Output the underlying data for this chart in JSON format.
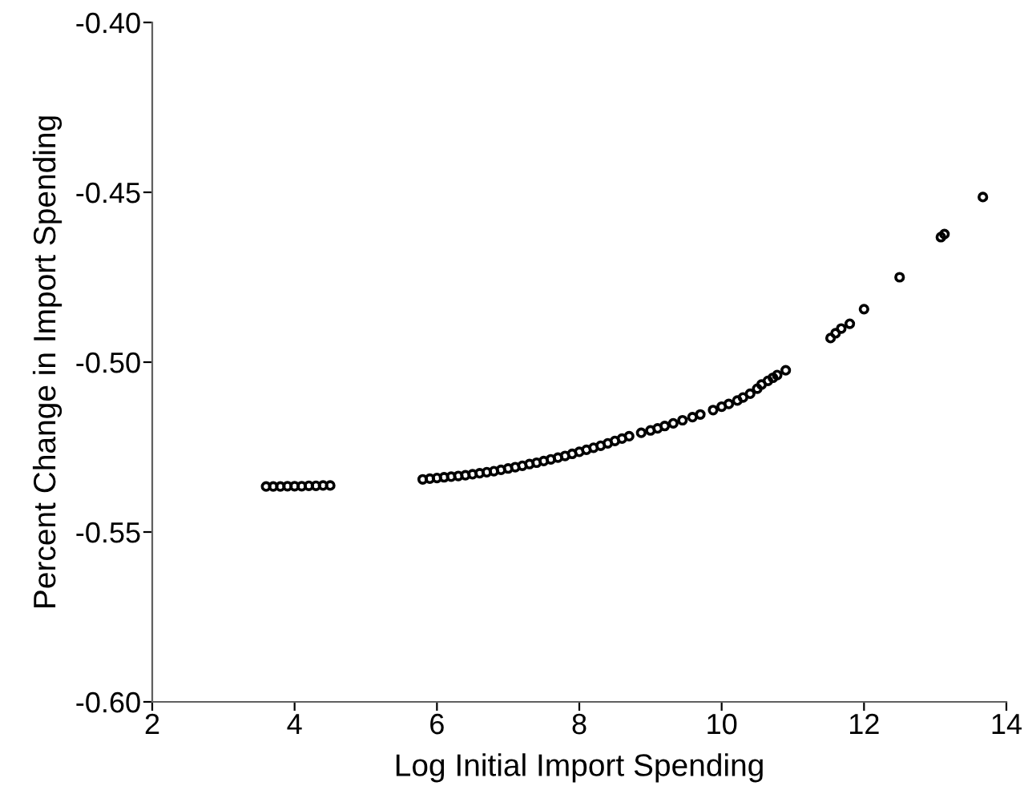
{
  "chart_data": {
    "type": "scatter",
    "xlabel": "Log Initial Import Spending",
    "ylabel": "Percent Change in Import Spending",
    "xlim": [
      2,
      14
    ],
    "ylim": [
      -0.6,
      -0.4
    ],
    "xticks": [
      2,
      4,
      6,
      8,
      10,
      12,
      14
    ],
    "yticks": [
      {
        "value": -0.6,
        "label": "-0.60"
      },
      {
        "value": -0.55,
        "label": "-0.55"
      },
      {
        "value": -0.5,
        "label": "-0.50"
      },
      {
        "value": -0.45,
        "label": "-0.45"
      },
      {
        "value": -0.4,
        "label": "-0.40"
      }
    ],
    "grid": false,
    "marker": "circle",
    "series": [
      {
        "color": "#000000",
        "x": [
          3.6,
          3.7,
          3.8,
          3.9,
          4.0,
          4.1,
          4.2,
          4.3,
          4.4,
          4.5,
          5.8,
          5.9,
          6.0,
          6.1,
          6.2,
          6.3,
          6.4,
          6.5,
          6.6,
          6.7,
          6.8,
          6.9,
          7.0,
          7.1,
          7.2,
          7.3,
          7.4,
          7.5,
          7.6,
          7.7,
          7.8,
          7.9,
          8.0,
          8.1,
          8.2,
          8.3,
          8.4,
          8.5,
          8.6,
          8.7,
          8.87,
          9.0,
          9.1,
          9.2,
          9.32,
          9.45,
          9.59,
          9.7,
          9.88,
          10.0,
          10.1,
          10.22,
          10.3,
          10.4,
          10.5,
          10.56,
          10.65,
          10.72,
          10.78,
          10.9,
          11.53,
          11.6,
          11.68,
          11.8,
          12.0,
          12.5,
          13.08,
          13.13,
          13.67
        ],
        "values": [
          -0.5366,
          -0.5366,
          -0.5366,
          -0.5365,
          -0.5365,
          -0.5365,
          -0.5364,
          -0.5364,
          -0.5363,
          -0.5363,
          -0.5345,
          -0.5343,
          -0.5341,
          -0.5339,
          -0.5337,
          -0.5335,
          -0.5333,
          -0.533,
          -0.5327,
          -0.5324,
          -0.5321,
          -0.5317,
          -0.5313,
          -0.5309,
          -0.5305,
          -0.53,
          -0.5296,
          -0.5291,
          -0.5286,
          -0.5281,
          -0.5276,
          -0.527,
          -0.5264,
          -0.5258,
          -0.5252,
          -0.5246,
          -0.5239,
          -0.5232,
          -0.5225,
          -0.5218,
          -0.5208,
          -0.5201,
          -0.5195,
          -0.5188,
          -0.518,
          -0.5171,
          -0.5162,
          -0.5154,
          -0.5141,
          -0.5131,
          -0.5123,
          -0.5113,
          -0.5104,
          -0.5093,
          -0.5078,
          -0.5066,
          -0.5055,
          -0.5046,
          -0.5038,
          -0.5024,
          -0.4929,
          -0.4915,
          -0.4901,
          -0.4887,
          -0.4844,
          -0.475,
          -0.4632,
          -0.4623,
          -0.4514
        ]
      }
    ]
  }
}
